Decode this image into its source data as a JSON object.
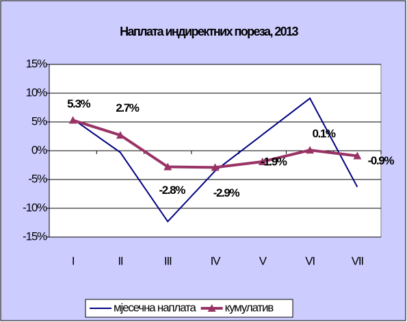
{
  "chart_data": {
    "type": "line",
    "title": "Наплата индиректних пореза, 2013",
    "categories": [
      "I",
      "II",
      "III",
      "IV",
      "V",
      "VI",
      "VII"
    ],
    "series": [
      {
        "name": "мјесечна наплата",
        "color": "#000080",
        "values": [
          5.5,
          -0.3,
          -12.3,
          -3.5,
          2.8,
          9.1,
          -6.3
        ]
      },
      {
        "name": "кумулатив",
        "color": "#993366",
        "marker": "triangle",
        "values": [
          5.3,
          2.7,
          -2.8,
          -2.9,
          -1.9,
          0.1,
          -0.9
        ],
        "value_labels": [
          "5.3%",
          "2.7%",
          "-2.8%",
          "-2.9%",
          "-1.9%",
          "0.1%",
          "-0.9%"
        ]
      }
    ],
    "ylim": [
      -15,
      15
    ],
    "yticks": [
      {
        "value": -15,
        "label": "-15%"
      },
      {
        "value": -10,
        "label": "-10%"
      },
      {
        "value": -5,
        "label": "-5%"
      },
      {
        "value": 0,
        "label": "0%"
      },
      {
        "value": 5,
        "label": "5%"
      },
      {
        "value": 10,
        "label": "10%"
      },
      {
        "value": 15,
        "label": "15%"
      }
    ],
    "grid": true,
    "legend": "bottom"
  }
}
